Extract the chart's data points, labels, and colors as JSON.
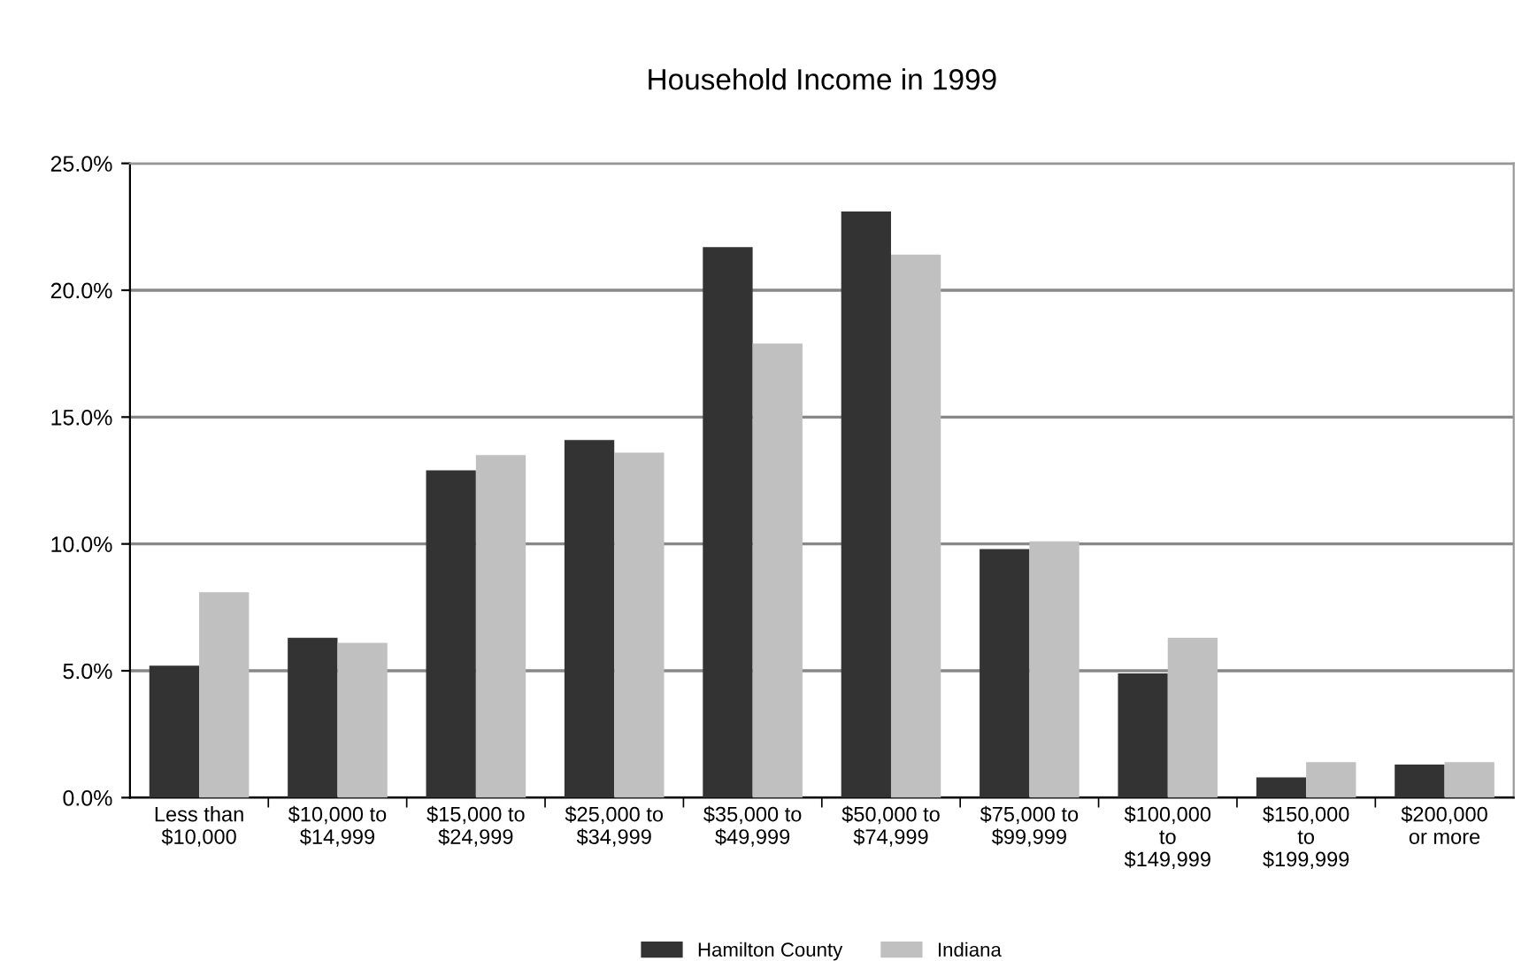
{
  "chart_data": {
    "type": "bar",
    "title": "Household Income in 1999",
    "categories": [
      "Less than\n$10,000",
      "$10,000 to\n$14,999",
      "$15,000 to\n$24,999",
      "$25,000 to\n$34,999",
      "$35,000 to\n$49,999",
      "$50,000 to\n$74,999",
      "$75,000 to\n$99,999",
      "$100,000\nto\n$149,999",
      "$150,000\nto\n$199,999",
      "$200,000\nor more"
    ],
    "series": [
      {
        "name": "Hamilton County",
        "color": "#333333",
        "values": [
          5.2,
          6.3,
          12.9,
          14.1,
          21.7,
          23.1,
          9.8,
          4.9,
          0.8,
          1.3
        ]
      },
      {
        "name": "Indiana",
        "color": "#c0c0c0",
        "values": [
          8.1,
          6.1,
          13.5,
          13.6,
          17.9,
          21.4,
          10.1,
          6.3,
          1.4,
          1.4
        ]
      }
    ],
    "ylim": [
      0,
      25
    ],
    "yticks": [
      {
        "value": 0,
        "label": "0.0%"
      },
      {
        "value": 5,
        "label": "5.0%"
      },
      {
        "value": 10,
        "label": "10.0%"
      },
      {
        "value": 15,
        "label": "15.0%"
      },
      {
        "value": 20,
        "label": "20.0%"
      },
      {
        "value": 25,
        "label": "25.0%"
      }
    ],
    "grid": "y",
    "legend": "bottom"
  }
}
